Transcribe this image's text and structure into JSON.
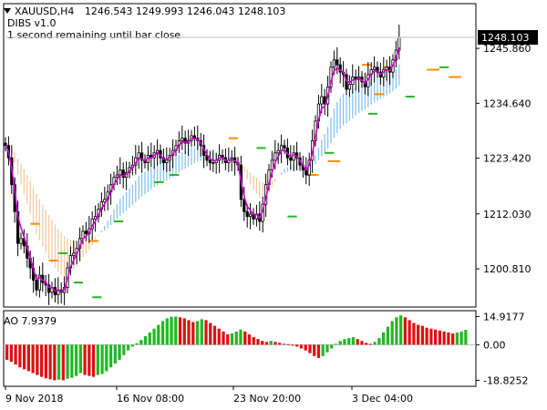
{
  "header": {
    "symbol": "XAUUSD,H4",
    "ohlc": "1246.543 1249.993 1246.043 1248.103",
    "indicator": "DIBS v1.0",
    "status": "1 second remaining until bar close"
  },
  "ao_panel": {
    "label": "AO 7.9379"
  },
  "colors": {
    "bull": "#000000",
    "bear": "#000000",
    "wma": "#d000d0",
    "cloud_up": "#87c3f0",
    "cloud_down": "#f5c9a0",
    "orange_level": "#ff8c00",
    "green_level": "#22b822",
    "ao_up": "#22b822",
    "ao_down": "#e01010",
    "grid": "#c0c0c0"
  },
  "chart_data": [
    {
      "type": "candlestick",
      "title": "XAUUSD,H4",
      "x_tick_labels": [
        "9 Nov 2018",
        "16 Nov 08:00",
        "23 Nov 20:00",
        "3 Dec 04:00"
      ],
      "y_tick_labels": [
        "1245.860",
        "1234.640",
        "1223.420",
        "1212.030",
        "1200.810"
      ],
      "y_ticks": [
        1245.86,
        1234.64,
        1223.42,
        1212.03,
        1200.81
      ],
      "ylim": [
        1193.0,
        1255.0
      ],
      "current_price": 1248.103,
      "current_price_label": "1248.103",
      "closes": [
        1226.0,
        1223.5,
        1218.0,
        1212.5,
        1206.0,
        1207.0,
        1205.5,
        1203.0,
        1201.0,
        1198.5,
        1196.5,
        1199.5,
        1198.0,
        1197.5,
        1196.0,
        1197.0,
        1195.5,
        1196.5,
        1196.0,
        1197.0,
        1201.0,
        1203.5,
        1204.0,
        1205.0,
        1207.0,
        1208.5,
        1208.0,
        1209.0,
        1211.0,
        1211.5,
        1213.0,
        1214.5,
        1215.0,
        1216.5,
        1218.0,
        1219.5,
        1220.0,
        1221.0,
        1219.5,
        1220.5,
        1221.5,
        1222.0,
        1223.5,
        1224.5,
        1223.0,
        1222.5,
        1224.0,
        1223.5,
        1224.5,
        1225.0,
        1223.5,
        1222.5,
        1223.0,
        1224.0,
        1225.0,
        1226.0,
        1227.0,
        1227.5,
        1226.5,
        1227.0,
        1228.0,
        1227.5,
        1227.0,
        1226.0,
        1224.0,
        1223.0,
        1222.5,
        1222.5,
        1223.0,
        1224.0,
        1223.5,
        1222.5,
        1223.0,
        1223.5,
        1222.5,
        1222.0,
        1215.0,
        1212.5,
        1211.5,
        1212.0,
        1211.0,
        1212.0,
        1210.5,
        1214.0,
        1218.0,
        1221.0,
        1223.0,
        1224.5,
        1225.0,
        1226.0,
        1225.5,
        1223.5,
        1223.0,
        1224.5,
        1223.5,
        1222.0,
        1221.0,
        1220.0,
        1223.0,
        1227.0,
        1231.0,
        1234.5,
        1236.0,
        1234.5,
        1238.0,
        1242.0,
        1243.5,
        1242.5,
        1241.0,
        1240.5,
        1237.5,
        1238.5,
        1240.0,
        1239.5,
        1240.0,
        1239.0,
        1238.0,
        1240.5,
        1241.5,
        1242.0,
        1241.0,
        1240.0,
        1241.5,
        1242.0,
        1241.0,
        1243.5,
        1245.5,
        1248.1
      ],
      "orange_levels": [
        {
          "start": 8,
          "end": 11,
          "y": 1210.0
        },
        {
          "start": 14,
          "end": 17,
          "y": 1202.5
        },
        {
          "start": 27,
          "end": 30,
          "y": 1206.5
        },
        {
          "start": 72,
          "end": 75,
          "y": 1227.5
        },
        {
          "start": 97,
          "end": 101,
          "y": 1220.0
        },
        {
          "start": 104,
          "end": 108,
          "y": 1222.8
        },
        {
          "start": 115,
          "end": 118,
          "y": 1242.5
        },
        {
          "start": 119,
          "end": 122,
          "y": 1236.5
        },
        {
          "start": 122,
          "end": 125,
          "y": 1242.0
        },
        {
          "start": 136,
          "end": 140,
          "y": 1241.5
        },
        {
          "start": 143,
          "end": 147,
          "y": 1240.0
        }
      ],
      "green_levels": [
        {
          "start": 17,
          "end": 20,
          "y": 1204.0
        },
        {
          "start": 22,
          "end": 25,
          "y": 1198.0
        },
        {
          "start": 28,
          "end": 31,
          "y": 1195.0
        },
        {
          "start": 35,
          "end": 38,
          "y": 1210.5
        },
        {
          "start": 48,
          "end": 51,
          "y": 1218.5
        },
        {
          "start": 53,
          "end": 56,
          "y": 1220.0
        },
        {
          "start": 81,
          "end": 84,
          "y": 1225.5
        },
        {
          "start": 91,
          "end": 94,
          "y": 1211.5
        },
        {
          "start": 103,
          "end": 106,
          "y": 1224.5
        },
        {
          "start": 117,
          "end": 120,
          "y": 1232.5
        },
        {
          "start": 129,
          "end": 132,
          "y": 1236.0
        },
        {
          "start": 140,
          "end": 143,
          "y": 1242.0
        }
      ]
    },
    {
      "type": "bar",
      "title": "AO 7.9379",
      "y_tick_labels": [
        "14.9177",
        "0.00",
        "-18.8252"
      ],
      "y_ticks": [
        14.9177,
        0.0,
        -18.8252
      ],
      "ylim": [
        -22,
        18
      ],
      "values": [
        -8.0,
        -9.0,
        -10.5,
        -12.0,
        -13.0,
        -14.0,
        -15.0,
        -16.0,
        -17.0,
        -17.8,
        -18.3,
        -18.8,
        -18.5,
        -18.8,
        -18.0,
        -17.5,
        -16.5,
        -15.0,
        -16.0,
        -16.5,
        -17.0,
        -16.0,
        -15.5,
        -14.0,
        -12.0,
        -10.0,
        -8.0,
        -5.5,
        -3.0,
        -1.0,
        0.8,
        2.5,
        4.5,
        6.5,
        8.5,
        10.5,
        12.5,
        14.0,
        14.8,
        14.9,
        14.5,
        14.0,
        13.0,
        12.0,
        12.5,
        13.5,
        13.0,
        11.5,
        10.0,
        8.5,
        7.0,
        5.5,
        6.0,
        7.0,
        8.0,
        7.0,
        5.5,
        4.0,
        3.0,
        2.0,
        1.5,
        2.0,
        1.5,
        1.0,
        0.5,
        0.3,
        -0.5,
        -1.0,
        -2.0,
        -3.0,
        -4.5,
        -6.0,
        -7.0,
        -6.0,
        -4.0,
        -2.0,
        0.5,
        2.0,
        3.0,
        3.5,
        4.0,
        3.0,
        2.0,
        1.0,
        0.5,
        1.5,
        3.5,
        6.5,
        9.5,
        12.5,
        14.5,
        15.5,
        14.5,
        13.0,
        11.5,
        10.5,
        10.0,
        9.0,
        8.5,
        8.0,
        7.5,
        7.0,
        6.5,
        6.0,
        6.5,
        7.0,
        7.9
      ]
    }
  ]
}
